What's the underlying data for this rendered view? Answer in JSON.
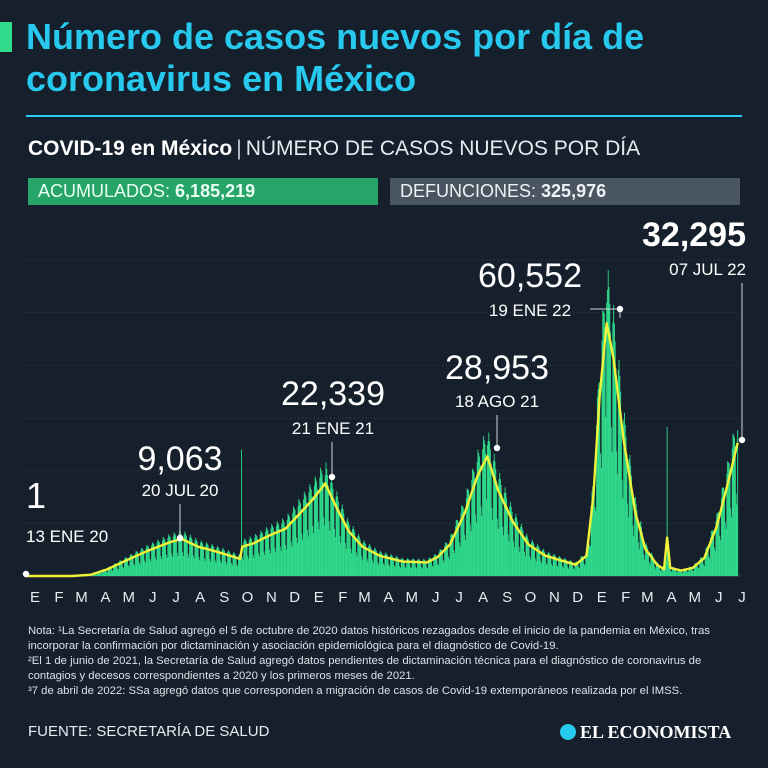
{
  "title": "Número de casos nuevos por día de coronavirus en México",
  "subtitle": {
    "strong": "COVID-19 en México",
    "separator": "|",
    "rest": "NÚMERO DE CASOS NUEVOS POR DÍA"
  },
  "stats": {
    "acumulados_label": "ACUMULADOS:",
    "acumulados_value": "6,185,219",
    "defunciones_label": "DEFUNCIONES:",
    "defunciones_value": "325,976"
  },
  "colors": {
    "background": "#15202c",
    "title": "#27c9ee",
    "bars": "#2fdc8c",
    "curve": "#f2f23a",
    "acumulados_pill": "#27a468",
    "defunciones_pill": "#4a5562"
  },
  "chart_data": {
    "type": "bar",
    "title": "NÚMERO DE CASOS NUEVOS POR DÍA",
    "ylim": [
      0,
      70000
    ],
    "grid": true,
    "month_ticks": [
      "E",
      "F",
      "M",
      "A",
      "M",
      "J",
      "J",
      "A",
      "S",
      "O",
      "N",
      "D",
      "E",
      "F",
      "M",
      "A",
      "M",
      "J",
      "J",
      "A",
      "S",
      "O",
      "N",
      "D",
      "E",
      "F",
      "M",
      "A",
      "M",
      "J",
      "J"
    ],
    "x_range": [
      "2020-01-01",
      "2022-07-10"
    ],
    "annotations": [
      {
        "value": "1",
        "date": "13 ENE 20",
        "y": 1,
        "day": "2020-01-13"
      },
      {
        "value": "9,063",
        "date": "20 JUL 20",
        "y": 9063,
        "day": "2020-07-20"
      },
      {
        "value": "22,339",
        "date": "21 ENE 21",
        "y": 22339,
        "day": "2021-01-21"
      },
      {
        "value": "28,953",
        "date": "18 AGO 21",
        "y": 28953,
        "day": "2021-08-18"
      },
      {
        "value": "60,552",
        "date": "19 ENE 22",
        "y": 60552,
        "day": "2022-01-19"
      },
      {
        "value": "32,295",
        "date": "07 JUL 22",
        "y": 32295,
        "day": "2022-07-07"
      }
    ],
    "series": [
      {
        "type": "line",
        "smoothed_daily_cases": [
          [
            "2020-01-01",
            0
          ],
          [
            "2020-03-01",
            0
          ],
          [
            "2020-03-25",
            300
          ],
          [
            "2020-04-15",
            1500
          ],
          [
            "2020-05-10",
            3500
          ],
          [
            "2020-06-05",
            5500
          ],
          [
            "2020-07-05",
            7500
          ],
          [
            "2020-07-20",
            8200
          ],
          [
            "2020-08-10",
            6500
          ],
          [
            "2020-09-01",
            5500
          ],
          [
            "2020-09-20",
            4500
          ],
          [
            "2020-10-03",
            3800
          ],
          [
            "2020-10-06",
            6500
          ],
          [
            "2020-10-20",
            7200
          ],
          [
            "2020-11-10",
            9000
          ],
          [
            "2020-12-01",
            10500
          ],
          [
            "2020-12-20",
            14000
          ],
          [
            "2021-01-05",
            17000
          ],
          [
            "2021-01-21",
            20500
          ],
          [
            "2021-02-05",
            15000
          ],
          [
            "2021-02-20",
            10000
          ],
          [
            "2021-03-10",
            6500
          ],
          [
            "2021-04-01",
            4500
          ],
          [
            "2021-05-01",
            3200
          ],
          [
            "2021-06-01",
            3000
          ],
          [
            "2021-06-15",
            4200
          ],
          [
            "2021-07-01",
            7000
          ],
          [
            "2021-07-20",
            14000
          ],
          [
            "2021-08-05",
            22000
          ],
          [
            "2021-08-18",
            26500
          ],
          [
            "2021-09-01",
            19000
          ],
          [
            "2021-09-20",
            12000
          ],
          [
            "2021-10-10",
            7000
          ],
          [
            "2021-11-01",
            4500
          ],
          [
            "2021-11-20",
            3500
          ],
          [
            "2021-12-10",
            2500
          ],
          [
            "2021-12-24",
            4500
          ],
          [
            "2022-01-02",
            18000
          ],
          [
            "2022-01-10",
            40000
          ],
          [
            "2022-01-19",
            56000
          ],
          [
            "2022-01-28",
            48000
          ],
          [
            "2022-02-10",
            30000
          ],
          [
            "2022-02-25",
            14000
          ],
          [
            "2022-03-10",
            6000
          ],
          [
            "2022-03-25",
            2500
          ],
          [
            "2022-04-03",
            1500
          ],
          [
            "2022-04-07",
            8500
          ],
          [
            "2022-04-11",
            1800
          ],
          [
            "2022-04-25",
            1200
          ],
          [
            "2022-05-10",
            1800
          ],
          [
            "2022-05-25",
            4000
          ],
          [
            "2022-06-10",
            11000
          ],
          [
            "2022-06-25",
            21000
          ],
          [
            "2022-07-07",
            29500
          ]
        ]
      }
    ]
  },
  "notes": {
    "n1": "Nota: ¹La Secretaría de Salud agregó el 5 de octubre de 2020 datos históricos rezagados desde el inicio de la pandemia en México, tras incorporar la confirmación por dictaminación y asociación epidemiológica para el diagnóstico de Covid-19.",
    "n2": "²El 1 de junio de 2021, la Secretaría de Salud agregó datos pendientes de dictaminación técnica para el diagnóstico de coronavirus de contagios y decesos correspondientes a 2020 y los primeros meses de 2021.",
    "n3": "³7 de abril de 2022: SSa agregó datos que corresponden a migración de casos de Covid-19 extemporáneos realizada por el IMSS."
  },
  "source": "FUENTE: SECRETARÍA DE SALUD",
  "logo": "EL ECONOMISTA"
}
